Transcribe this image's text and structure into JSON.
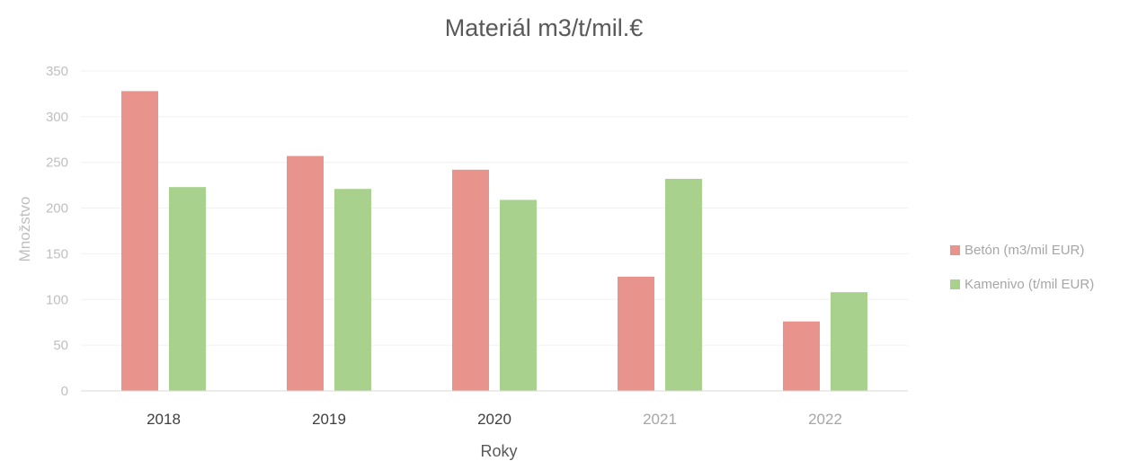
{
  "chart_data": {
    "type": "bar",
    "title": "Materiál m3/t/mil.€",
    "xlabel": "Roky",
    "ylabel": "Množstvo",
    "categories": [
      "2018",
      "2019",
      "2020",
      "2021",
      "2022"
    ],
    "ylim": [
      0,
      350
    ],
    "yticks": [
      0,
      50,
      100,
      150,
      200,
      250,
      300,
      350
    ],
    "grid": true,
    "legend_position": "right",
    "series": [
      {
        "name": "Betón (m3/mil EUR)",
        "color": "#e8948c",
        "values": [
          328,
          257,
          242,
          125,
          76
        ]
      },
      {
        "name": "Kamenivo  (t/mil EUR)",
        "color": "#a9d18e",
        "values": [
          223,
          221,
          209,
          232,
          108
        ]
      }
    ]
  }
}
